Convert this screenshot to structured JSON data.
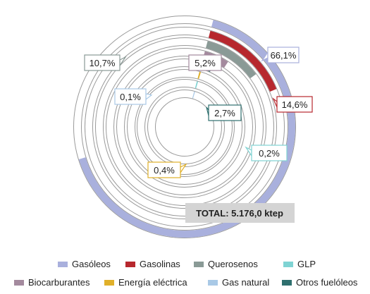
{
  "chart_data": {
    "type": "radial-bar",
    "total_label": "TOTAL: 5.176,0 ktep",
    "series": [
      {
        "name": "Gasóleos",
        "value": 66.1,
        "label": "66,1%",
        "color": "#a9b0dd"
      },
      {
        "name": "Gasolinas",
        "value": 14.6,
        "label": "14,6%",
        "color": "#b7282e"
      },
      {
        "name": "Querosenos",
        "value": 10.7,
        "label": "10,7%",
        "color": "#8a9a96"
      },
      {
        "name": "Biocarburantes",
        "value": 5.2,
        "label": "5,2%",
        "color": "#a48a9e"
      },
      {
        "name": "Otros fuelóleos",
        "value": 2.7,
        "label": "2,7%",
        "color": "#2e6f6e"
      },
      {
        "name": "Energía eléctrica",
        "value": 0.4,
        "label": "0,4%",
        "color": "#e0b02a"
      },
      {
        "name": "GLP",
        "value": 0.2,
        "label": "0,2%",
        "color": "#7fd3d3"
      },
      {
        "name": "Gas natural",
        "value": 0.1,
        "label": "0,1%",
        "color": "#a9c9e6"
      }
    ],
    "legend": {
      "position": "bottom",
      "rows": [
        [
          "Gasóleos",
          "Gasolinas",
          "Querosenos",
          "GLP"
        ],
        [
          "Biocarburantes",
          "Energía eléctrica",
          "Gas natural",
          "Otros fuelóleos"
        ]
      ]
    }
  }
}
